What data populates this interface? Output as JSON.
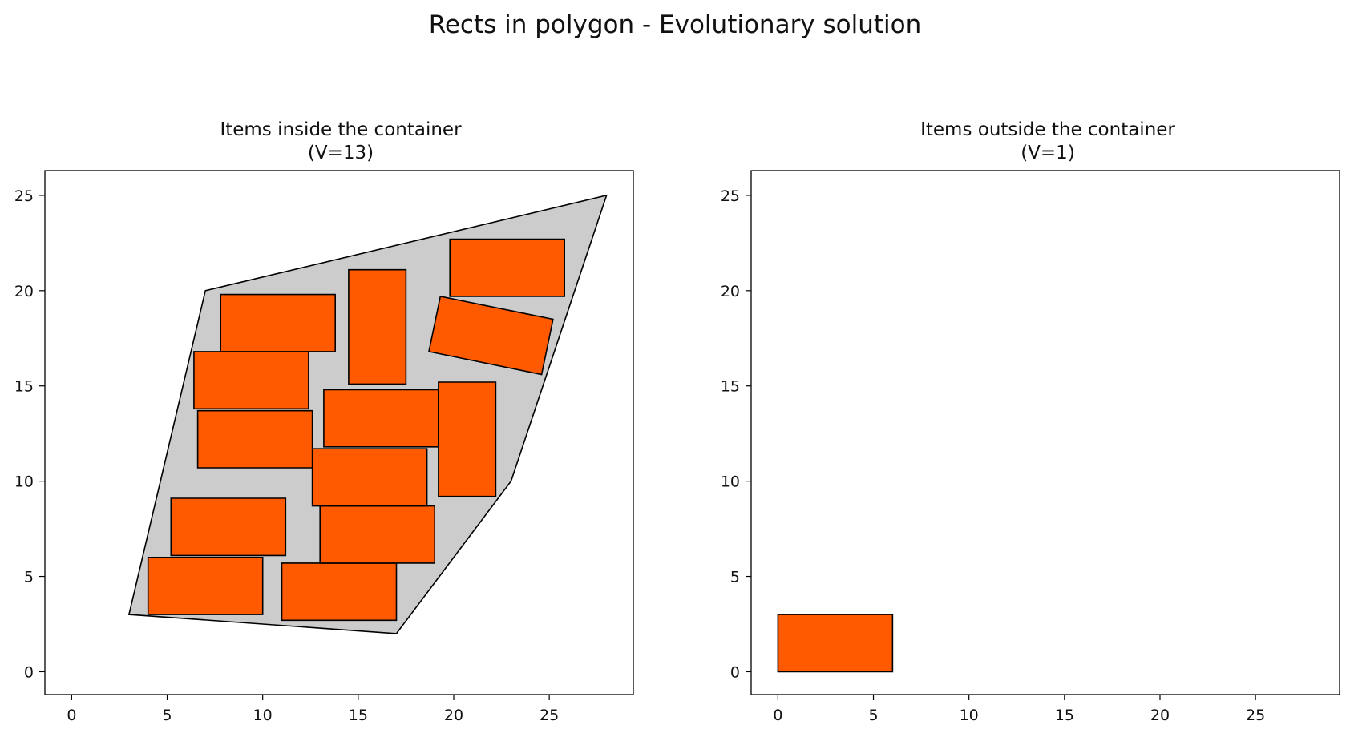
{
  "figure": {
    "suptitle": "Rects in polygon - Evolutionary solution"
  },
  "colors": {
    "item_fill": "#ff5a00",
    "container_fill": "#cccccc",
    "edge": "#000000"
  },
  "chart_data": [
    {
      "type": "polygon-packing",
      "title_line1": "Items inside the container",
      "title_line2": "(V=13)",
      "xlim": [
        -1.4,
        29.4
      ],
      "ylim": [
        -1.2,
        26.3
      ],
      "xticks": [
        0,
        5,
        10,
        15,
        20,
        25
      ],
      "yticks": [
        0,
        5,
        10,
        15,
        20,
        25
      ],
      "container": [
        [
          3,
          3
        ],
        [
          7,
          20
        ],
        [
          28,
          25
        ],
        [
          23,
          10
        ],
        [
          17,
          2
        ]
      ],
      "items": [
        {
          "corners": [
            [
              4,
              3
            ],
            [
              10,
              3
            ],
            [
              10,
              6
            ],
            [
              4,
              6
            ]
          ]
        },
        {
          "corners": [
            [
              11,
              2.7
            ],
            [
              17,
              2.7
            ],
            [
              17,
              5.7
            ],
            [
              11,
              5.7
            ]
          ]
        },
        {
          "corners": [
            [
              5.2,
              6.1
            ],
            [
              11.2,
              6.1
            ],
            [
              11.2,
              9.1
            ],
            [
              5.2,
              9.1
            ]
          ]
        },
        {
          "corners": [
            [
              13,
              5.7
            ],
            [
              19,
              5.7
            ],
            [
              19,
              8.7
            ],
            [
              13,
              8.7
            ]
          ]
        },
        {
          "corners": [
            [
              12.6,
              8.7
            ],
            [
              18.6,
              8.7
            ],
            [
              18.6,
              11.7
            ],
            [
              12.6,
              11.7
            ]
          ]
        },
        {
          "corners": [
            [
              6.6,
              10.7
            ],
            [
              12.6,
              10.7
            ],
            [
              12.6,
              13.7
            ],
            [
              6.6,
              13.7
            ]
          ]
        },
        {
          "corners": [
            [
              13.2,
              11.8
            ],
            [
              19.2,
              11.8
            ],
            [
              19.2,
              14.8
            ],
            [
              13.2,
              14.8
            ]
          ]
        },
        {
          "corners": [
            [
              19.2,
              9.2
            ],
            [
              22.2,
              9.2
            ],
            [
              22.2,
              15.2
            ],
            [
              19.2,
              15.2
            ]
          ]
        },
        {
          "corners": [
            [
              6.4,
              13.8
            ],
            [
              12.4,
              13.8
            ],
            [
              12.4,
              16.8
            ],
            [
              6.4,
              16.8
            ]
          ]
        },
        {
          "corners": [
            [
              14.5,
              15.1
            ],
            [
              17.5,
              15.1
            ],
            [
              17.5,
              21.1
            ],
            [
              14.5,
              21.1
            ]
          ]
        },
        {
          "corners": [
            [
              7.8,
              16.8
            ],
            [
              13.8,
              16.8
            ],
            [
              13.8,
              19.8
            ],
            [
              7.8,
              19.8
            ]
          ]
        },
        {
          "corners": [
            [
              18.7,
              16.8
            ],
            [
              24.6,
              15.6
            ],
            [
              25.2,
              18.5
            ],
            [
              19.3,
              19.7
            ]
          ]
        },
        {
          "corners": [
            [
              19.8,
              19.7
            ],
            [
              25.8,
              19.7
            ],
            [
              25.8,
              22.7
            ],
            [
              19.8,
              22.7
            ]
          ]
        }
      ]
    },
    {
      "type": "polygon-packing",
      "title_line1": "Items outside the container",
      "title_line2": "(V=1)",
      "xlim": [
        -1.4,
        29.4
      ],
      "ylim": [
        -1.2,
        26.3
      ],
      "xticks": [
        0,
        5,
        10,
        15,
        20,
        25
      ],
      "yticks": [
        0,
        5,
        10,
        15,
        20,
        25
      ],
      "container": [],
      "items": [
        {
          "corners": [
            [
              0,
              0
            ],
            [
              6,
              0
            ],
            [
              6,
              3
            ],
            [
              0,
              3
            ]
          ]
        }
      ]
    }
  ]
}
